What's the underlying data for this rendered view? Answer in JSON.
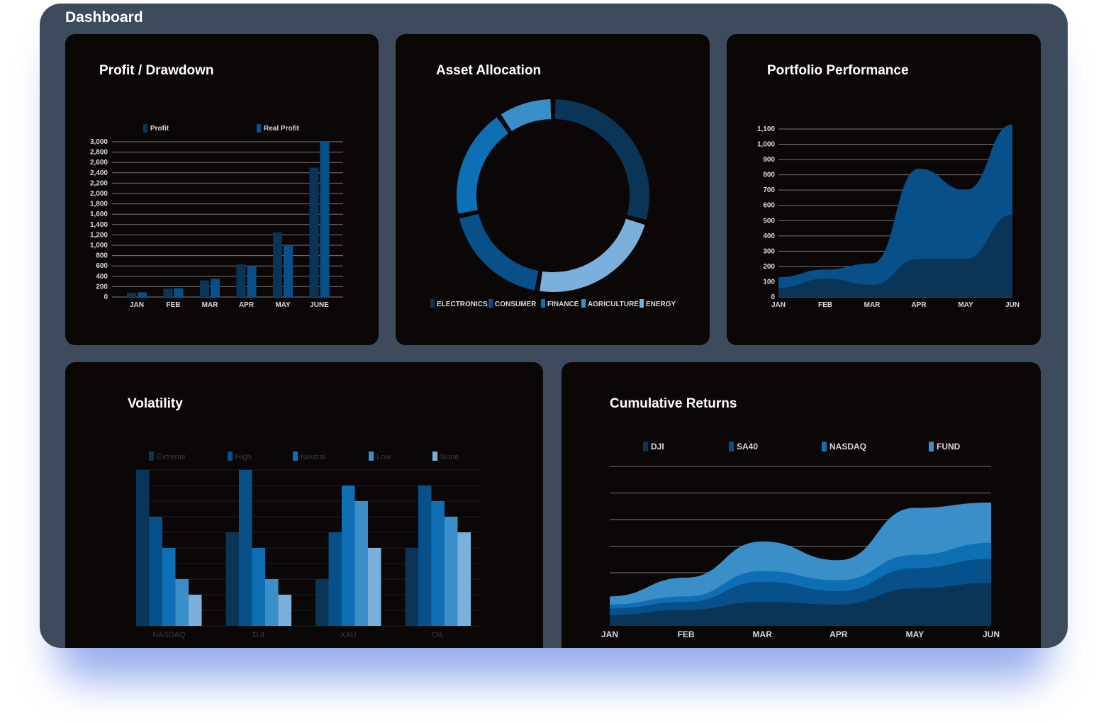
{
  "page": {
    "title": "Dashboard"
  },
  "colors": {
    "frame": "#3d4b5c",
    "panel": "#0c0707",
    "grid": "#777777",
    "blue_1": "#0b3556",
    "blue_2": "#07508a",
    "blue_3": "#0f6fb5",
    "blue_4": "#3a8fc9",
    "blue_5": "#7ab0db"
  },
  "panels": {
    "profit": {
      "title": "Profit / Drawdown"
    },
    "allocation": {
      "title": "Asset Allocation"
    },
    "performance": {
      "title": "Portfolio Performance"
    },
    "volatility": {
      "title": "Volatility"
    },
    "cumulative": {
      "title": "Cumulative Returns"
    }
  },
  "chart_data": [
    {
      "id": "profit",
      "type": "bar",
      "title": "Profit / Drawdown",
      "categories": [
        "JAN",
        "FEB",
        "MAR",
        "APR",
        "MAY",
        "JUNE"
      ],
      "series": [
        {
          "name": "Profit",
          "values": [
            80,
            160,
            320,
            630,
            1250,
            2500
          ],
          "color": "#0b3556"
        },
        {
          "name": "Real Profit",
          "values": [
            90,
            170,
            350,
            600,
            1000,
            3000
          ],
          "color": "#07508a"
        }
      ],
      "ylim": [
        0,
        3000
      ],
      "yticks": [
        "0",
        "200",
        "400",
        "600",
        "800",
        "1,000",
        "1,200",
        "1,400",
        "1,600",
        "1,800",
        "2,000",
        "2,200",
        "2,400",
        "2,600",
        "2,800",
        "3,000"
      ],
      "grid": true,
      "legend": "top"
    },
    {
      "id": "allocation",
      "type": "pie",
      "title": "Asset Allocation",
      "categories": [
        "ELECTRONICS",
        "CONSUMER",
        "FINANCE",
        "AGRICULTURE",
        "ENERGY"
      ],
      "values": [
        28,
        22,
        18,
        18,
        9
      ],
      "colors": [
        "#0b3556",
        "#7ab0db",
        "#07508a",
        "#0f6fb5",
        "#3a8fc9"
      ],
      "legend": "bottom"
    },
    {
      "id": "performance",
      "type": "area",
      "title": "Portfolio Performance",
      "categories": [
        "JAN",
        "FEB",
        "MAR",
        "APR",
        "MAY",
        "JUN"
      ],
      "series": [
        {
          "values": [
            130,
            180,
            220,
            840,
            700,
            1130
          ],
          "color": "#07508a"
        },
        {
          "values": [
            60,
            120,
            80,
            250,
            250,
            540
          ],
          "color": "#0b3556"
        }
      ],
      "ylim": [
        0,
        1100
      ],
      "yticks": [
        "0",
        "100",
        "200",
        "300",
        "400",
        "500",
        "600",
        "700",
        "800",
        "900",
        "1,000",
        "1,100"
      ],
      "grid": true
    },
    {
      "id": "volatility",
      "type": "bar",
      "title": "Volatility",
      "categories": [
        "NASDAQ",
        "DJI",
        "XAU",
        "OIL"
      ],
      "series": [
        {
          "name": "Extreme",
          "values": [
            10,
            6,
            3,
            5
          ],
          "color": "#0b3556"
        },
        {
          "name": "High",
          "values": [
            7,
            10,
            6,
            9
          ],
          "color": "#07508a"
        },
        {
          "name": "Neutral",
          "values": [
            5,
            5,
            9,
            8
          ],
          "color": "#0f6fb5"
        },
        {
          "name": "Low",
          "values": [
            3,
            3,
            8,
            7
          ],
          "color": "#3a8fc9"
        },
        {
          "name": "None",
          "values": [
            2,
            2,
            5,
            6
          ],
          "color": "#7ab0db"
        }
      ],
      "ylim": [
        0,
        10
      ],
      "grid": true,
      "legend": "top"
    },
    {
      "id": "cumulative",
      "type": "area",
      "title": "Cumulative Returns",
      "categories": [
        "JAN",
        "FEB",
        "MAR",
        "APR",
        "MAY",
        "JUN"
      ],
      "series": [
        {
          "name": "DJI",
          "values": [
            8,
            12,
            18,
            16,
            28,
            32
          ],
          "color": "#0b3556"
        },
        {
          "name": "SA40",
          "values": [
            5,
            6,
            15,
            10,
            15,
            18
          ],
          "color": "#07508a"
        },
        {
          "name": "NASDAQ",
          "values": [
            3,
            4,
            8,
            8,
            10,
            12
          ],
          "color": "#0f6fb5"
        },
        {
          "name": "FUND",
          "values": [
            6,
            14,
            22,
            15,
            35,
            30
          ],
          "color": "#3a8fc9"
        }
      ],
      "ylim": [
        0,
        120
      ],
      "grid": true,
      "legend": "top"
    }
  ]
}
